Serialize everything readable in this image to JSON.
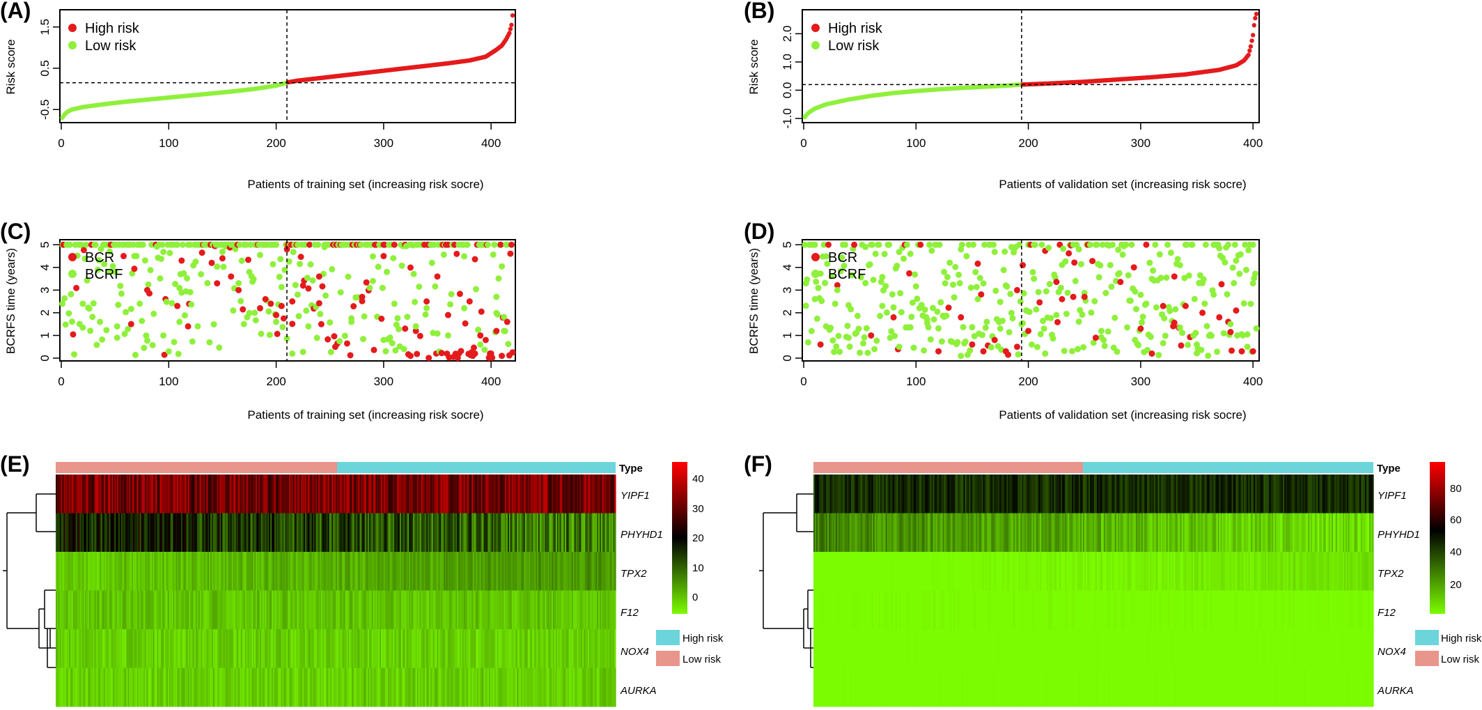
{
  "panels": {
    "A": {
      "label": "(A)",
      "xlabel": "Patients of training set  (increasing risk socre)",
      "ylabel": "Risk score",
      "xticks": [
        "0",
        "100",
        "200",
        "300",
        "400"
      ],
      "yticks": [
        "-0.5",
        "0.5",
        "1.5"
      ],
      "legend": [
        "High risk",
        "Low  risk"
      ]
    },
    "B": {
      "label": "(B)",
      "xlabel": "Patients of validation set (increasing risk socre)",
      "ylabel": "Risk score",
      "xticks": [
        "0",
        "100",
        "200",
        "300",
        "400"
      ],
      "yticks": [
        "-1.0",
        "0.0",
        "1.0",
        "2.0"
      ],
      "legend": [
        "High risk",
        "Low  risk"
      ]
    },
    "C": {
      "label": "(C)",
      "xlabel": "Patients of training set  (increasing risk socre)",
      "ylabel": "BCRFS time (years)",
      "xticks": [
        "0",
        "100",
        "200",
        "300",
        "400"
      ],
      "yticks": [
        "0",
        "1",
        "2",
        "3",
        "4",
        "5"
      ],
      "legend": [
        "BCR",
        "BCRF"
      ]
    },
    "D": {
      "label": "(D)",
      "xlabel": "Patients of validation set (increasing risk socre)",
      "ylabel": "BCRFS time (years)",
      "xticks": [
        "0",
        "100",
        "200",
        "300",
        "400"
      ],
      "yticks": [
        "0",
        "1",
        "2",
        "3",
        "4",
        "5"
      ],
      "legend": [
        "BCR",
        "BCRF"
      ]
    },
    "E": {
      "label": "(E)",
      "type_label": "Type",
      "scale_ticks": [
        "40",
        "30",
        "20",
        "10",
        "0"
      ],
      "legend": [
        "High   risk",
        "Low    risk"
      ]
    },
    "F": {
      "label": "(F)",
      "type_label": "Type",
      "scale_ticks": [
        "80",
        "60",
        "40",
        "20"
      ],
      "legend": [
        "High  risk",
        "Low    risk"
      ]
    }
  },
  "genes": [
    "YIPF1",
    "PHYHD1",
    "TPX2",
    "F12",
    "NOX4",
    "AURKA"
  ],
  "colors": {
    "high": "#e41a1c",
    "low": "#8ff03c",
    "type_high": "#6cd5dc",
    "type_low": "#e8958b",
    "heat_hi": "#ff0000",
    "heat_mid": "#000000",
    "heat_lo": "#7cfc00"
  },
  "chart_data": [
    {
      "type": "scatter",
      "panel": "A",
      "title": "",
      "xlabel": "Patients of training set  (increasing risk socre)",
      "ylabel": "Risk score",
      "xlim": [
        0,
        420
      ],
      "ylim": [
        -0.75,
        1.85
      ],
      "cutoff_x": 210,
      "cutoff_y": 0.15,
      "series": [
        {
          "name": "High risk",
          "x": [
            211,
            220,
            240,
            260,
            280,
            300,
            320,
            340,
            360,
            380,
            395,
            405,
            410,
            414,
            417,
            419,
            420
          ],
          "y": [
            0.16,
            0.2,
            0.26,
            0.32,
            0.38,
            0.44,
            0.5,
            0.56,
            0.62,
            0.69,
            0.78,
            0.95,
            1.05,
            1.2,
            1.35,
            1.55,
            1.78
          ]
        },
        {
          "name": "Low  risk",
          "x": [
            1,
            3,
            6,
            10,
            20,
            40,
            60,
            80,
            100,
            120,
            140,
            160,
            180,
            200,
            210
          ],
          "y": [
            -0.7,
            -0.62,
            -0.55,
            -0.5,
            -0.44,
            -0.37,
            -0.31,
            -0.26,
            -0.21,
            -0.16,
            -0.11,
            -0.06,
            0.0,
            0.08,
            0.15
          ]
        }
      ]
    },
    {
      "type": "scatter",
      "panel": "B",
      "title": "",
      "xlabel": "Patients of validation set (increasing risk socre)",
      "ylabel": "Risk score",
      "xlim": [
        0,
        403
      ],
      "ylim": [
        -1.05,
        2.75
      ],
      "cutoff_x": 194,
      "cutoff_y": 0.2,
      "series": [
        {
          "name": "High risk",
          "x": [
            195,
            220,
            250,
            280,
            310,
            340,
            370,
            385,
            392,
            396,
            398,
            400,
            401,
            402,
            403
          ],
          "y": [
            0.2,
            0.24,
            0.3,
            0.38,
            0.46,
            0.56,
            0.72,
            0.88,
            1.05,
            1.25,
            1.55,
            1.95,
            2.3,
            2.55,
            2.7
          ]
        },
        {
          "name": "Low  risk",
          "x": [
            1,
            3,
            6,
            10,
            20,
            40,
            60,
            80,
            100,
            120,
            140,
            160,
            180,
            194
          ],
          "y": [
            -0.95,
            -0.85,
            -0.75,
            -0.65,
            -0.5,
            -0.33,
            -0.2,
            -0.1,
            -0.03,
            0.03,
            0.08,
            0.12,
            0.16,
            0.2
          ]
        }
      ]
    },
    {
      "type": "scatter",
      "panel": "C",
      "title": "",
      "xlabel": "Patients of training set  (increasing risk socre)",
      "ylabel": "BCRFS time (years)",
      "xlim": [
        0,
        420
      ],
      "ylim": [
        0,
        5.1
      ],
      "cutoff_x": 210,
      "series": [
        {
          "name": "BCR",
          "x": [
            58,
            65,
            80,
            108,
            112,
            118,
            140,
            145,
            150,
            158,
            165,
            185,
            190,
            195,
            200,
            205,
            210,
            215,
            225,
            240,
            255,
            280,
            300,
            320,
            325,
            330,
            340,
            350,
            360,
            370,
            380,
            385,
            390,
            395,
            400,
            405,
            410,
            415
          ],
          "y": [
            4.5,
            1.5,
            3.0,
            2.3,
            4.3,
            1.4,
            4.2,
            3.3,
            4.4,
            3.6,
            3.0,
            2.2,
            2.6,
            2.4,
            1.9,
            2.3,
            4.8,
            2.5,
            3.2,
            3.6,
            0.5,
            2.7,
            4.5,
            1.3,
            0.1,
            1.2,
            2.5,
            3.6,
            1.9,
            0.2,
            2.5,
            0.2,
            1.0,
            0.8,
            0.2,
            1.2,
            0.1,
            1.6
          ]
        },
        {
          "name": "BCRF",
          "x": [
            1,
            20,
            45,
            52,
            68,
            95,
            110,
            120,
            130,
            160,
            170,
            175,
            180,
            200,
            215,
            220,
            230,
            245,
            260,
            270,
            290,
            300,
            310,
            330,
            345,
            360,
            375,
            390,
            405,
            412
          ],
          "y": [
            2.4,
            2.4,
            4.7,
            0.9,
            4.5,
            1.0,
            1.6,
            5.0,
            3.7,
            2.1,
            1.5,
            3.8,
            2.0,
            1.6,
            0.2,
            2.8,
            1.4,
            4.9,
            2.9,
            1.6,
            3.4,
            0.8,
            2.4,
            1.4,
            4.2,
            1.0,
            2.2,
            0.6,
            2.7,
            1.2
          ]
        }
      ]
    },
    {
      "type": "scatter",
      "panel": "D",
      "title": "",
      "xlabel": "Patients of validation set (increasing risk socre)",
      "ylabel": "BCRFS time (years)",
      "xlim": [
        0,
        403
      ],
      "ylim": [
        0,
        5.1
      ],
      "cutoff_x": 194,
      "series": [
        {
          "name": "BCR",
          "x": [
            15,
            60,
            80,
            120,
            140,
            150,
            160,
            170,
            180,
            190,
            195,
            200,
            230,
            240,
            250,
            260,
            300,
            310,
            320,
            330,
            340,
            355,
            370,
            378,
            385,
            390,
            400
          ],
          "y": [
            0.6,
            1.0,
            1.8,
            0.3,
            1.8,
            0.6,
            0.3,
            0.8,
            0.3,
            0.5,
            4.1,
            1.2,
            2.6,
            2.7,
            2.7,
            0.9,
            1.3,
            0.2,
            2.3,
            3.6,
            2.3,
            2.0,
            1.8,
            1.6,
            2.1,
            0.3,
            0.3
          ]
        },
        {
          "name": "BCRF",
          "x": [
            2,
            10,
            20,
            30,
            40,
            55,
            70,
            85,
            95,
            110,
            125,
            140,
            155,
            175,
            185,
            205,
            215,
            225,
            245,
            265,
            280,
            295,
            305,
            335,
            350,
            365,
            380,
            395,
            400
          ],
          "y": [
            3.3,
            2.6,
            1.4,
            3.0,
            0.9,
            4.9,
            2.3,
            0.5,
            4.6,
            1.7,
            3.8,
            0.1,
            2.6,
            1.3,
            4.9,
            3.5,
            0.2,
            1.9,
            4.8,
            1.2,
            3.7,
            0.8,
            2.4,
            4.1,
            0.6,
            2.8,
            1.5,
            0.5,
            3.3
          ]
        }
      ]
    },
    {
      "type": "heatmap",
      "panel": "E",
      "rows": [
        "YIPF1",
        "PHYHD1",
        "TPX2",
        "F12",
        "NOX4",
        "AURKA"
      ],
      "groups": [
        "Low    risk",
        "High   risk"
      ],
      "scale": [
        0,
        45
      ],
      "row_means": [
        33,
        16,
        7,
        5,
        4,
        4
      ]
    },
    {
      "type": "heatmap",
      "panel": "F",
      "rows": [
        "YIPF1",
        "PHYHD1",
        "TPX2",
        "F12",
        "NOX4",
        "AURKA"
      ],
      "groups": [
        "Low    risk",
        "High  risk"
      ],
      "scale": [
        5,
        95
      ],
      "row_means": [
        42,
        18,
        6,
        4,
        3,
        3
      ]
    }
  ]
}
